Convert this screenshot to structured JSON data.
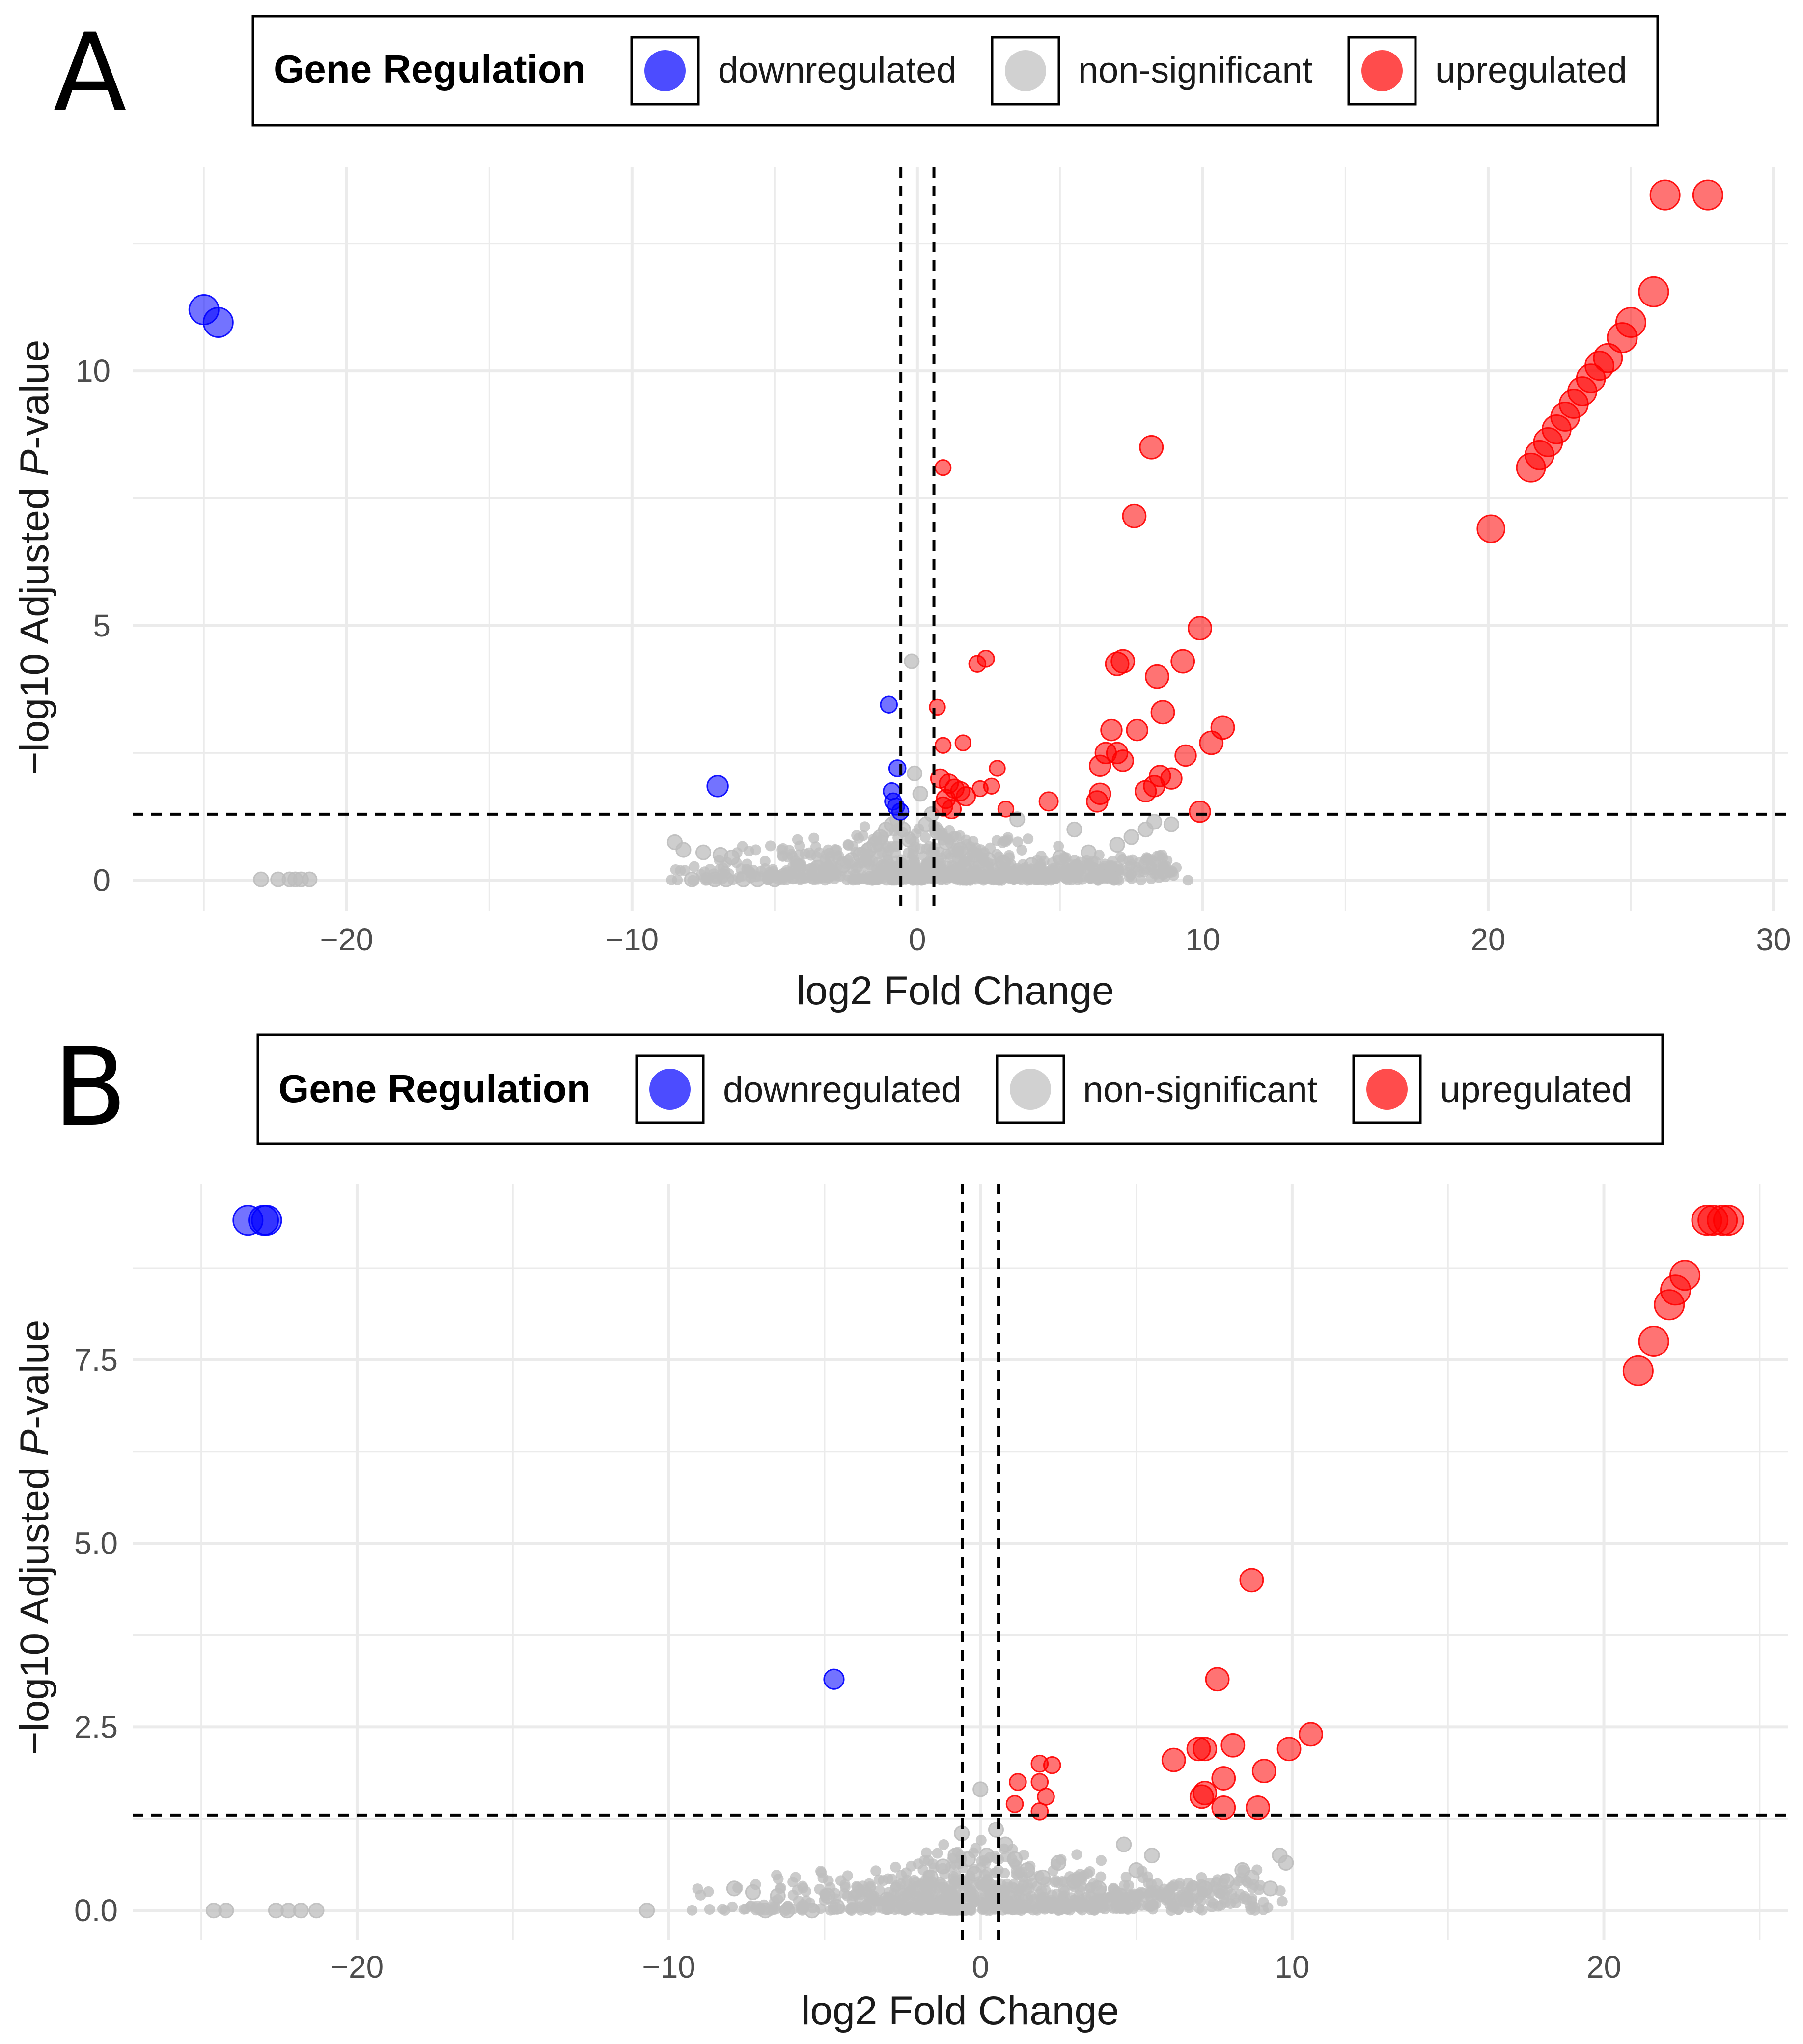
{
  "legend": {
    "title": "Gene Regulation",
    "entries": [
      {
        "label": "downregulated",
        "color": "#0000ff"
      },
      {
        "label": "non-significant",
        "color": "#bebebe"
      },
      {
        "label": "upregulated",
        "color": "#ff0000"
      }
    ]
  },
  "colors": {
    "down": "#0000ff",
    "ns": "#bebebe",
    "up": "#ff0000",
    "grid": "#ebebeb",
    "threshold": "#000000"
  },
  "chart_data": [
    {
      "panel": "A",
      "type": "scatter",
      "title": "",
      "xlabel": "log2 Fold Change",
      "ylabel_prefix": "−log10 Adjusted ",
      "ylabel_italic": "P",
      "ylabel_suffix": "-value",
      "xlim": [
        -27.5,
        30.5
      ],
      "ylim": [
        -0.6,
        14.0
      ],
      "x_ticks": [
        -20,
        -10,
        0,
        10,
        20,
        30
      ],
      "x_tick_labels": [
        "−20",
        "−10",
        "0",
        "10",
        "20",
        "30"
      ],
      "y_ticks": [
        0,
        5,
        10
      ],
      "y_tick_labels": [
        "0",
        "5",
        "10"
      ],
      "fc_threshold": 0.58,
      "p_threshold": 1.3,
      "legend_position": "top",
      "points": {
        "downregulated": [
          [
            -25.0,
            11.2,
            1.0
          ],
          [
            -24.5,
            10.95,
            1.0
          ],
          [
            -7.0,
            1.85,
            0.6
          ],
          [
            -1.0,
            3.45,
            0.4
          ],
          [
            -0.7,
            2.2,
            0.4
          ],
          [
            -0.9,
            1.75,
            0.4
          ],
          [
            -0.85,
            1.55,
            0.4
          ],
          [
            -0.75,
            1.45,
            0.4
          ],
          [
            -0.6,
            1.35,
            0.4
          ]
        ],
        "upregulated": [
          [
            27.7,
            13.45,
            1.0
          ],
          [
            26.2,
            13.45,
            1.0
          ],
          [
            25.8,
            11.55,
            1.0
          ],
          [
            25.0,
            10.95,
            1.0
          ],
          [
            24.7,
            10.65,
            1.0
          ],
          [
            24.2,
            10.25,
            0.95
          ],
          [
            23.9,
            10.1,
            0.95
          ],
          [
            23.6,
            9.85,
            0.95
          ],
          [
            23.3,
            9.6,
            0.95
          ],
          [
            23.0,
            9.35,
            0.95
          ],
          [
            22.7,
            9.1,
            0.95
          ],
          [
            22.4,
            8.85,
            0.95
          ],
          [
            22.1,
            8.6,
            0.95
          ],
          [
            21.8,
            8.35,
            0.95
          ],
          [
            21.5,
            8.1,
            0.95
          ],
          [
            20.1,
            6.9,
            0.9
          ],
          [
            8.2,
            8.5,
            0.7
          ],
          [
            7.6,
            7.15,
            0.7
          ],
          [
            9.9,
            4.95,
            0.7
          ],
          [
            7.2,
            4.3,
            0.7
          ],
          [
            7.0,
            4.25,
            0.7
          ],
          [
            9.3,
            4.3,
            0.7
          ],
          [
            8.4,
            4.0,
            0.7
          ],
          [
            8.6,
            3.3,
            0.7
          ],
          [
            10.7,
            3.0,
            0.7
          ],
          [
            10.3,
            2.7,
            0.7
          ],
          [
            6.8,
            2.95,
            0.6
          ],
          [
            7.7,
            2.95,
            0.6
          ],
          [
            6.6,
            2.5,
            0.6
          ],
          [
            7.0,
            2.5,
            0.6
          ],
          [
            9.4,
            2.45,
            0.6
          ],
          [
            6.4,
            2.25,
            0.6
          ],
          [
            7.2,
            2.35,
            0.6
          ],
          [
            8.5,
            2.05,
            0.6
          ],
          [
            8.9,
            2.0,
            0.6
          ],
          [
            8.0,
            1.75,
            0.6
          ],
          [
            8.3,
            1.85,
            0.6
          ],
          [
            6.4,
            1.7,
            0.6
          ],
          [
            6.3,
            1.55,
            0.6
          ],
          [
            9.9,
            1.35,
            0.6
          ],
          [
            4.6,
            1.55,
            0.5
          ],
          [
            2.4,
            4.35,
            0.4
          ],
          [
            2.1,
            4.25,
            0.4
          ],
          [
            0.9,
            8.1,
            0.35
          ],
          [
            0.7,
            3.4,
            0.35
          ],
          [
            1.6,
            2.7,
            0.35
          ],
          [
            0.9,
            2.65,
            0.35
          ],
          [
            2.8,
            2.2,
            0.35
          ],
          [
            3.1,
            1.4,
            0.35
          ],
          [
            2.6,
            1.85,
            0.35
          ],
          [
            2.2,
            1.8,
            0.35
          ],
          [
            0.8,
            2.0,
            0.5
          ],
          [
            1.1,
            1.9,
            0.5
          ],
          [
            1.3,
            1.8,
            0.5
          ],
          [
            1.5,
            1.75,
            0.5
          ],
          [
            1.0,
            1.6,
            0.5
          ],
          [
            1.7,
            1.65,
            0.5
          ],
          [
            0.9,
            1.45,
            0.5
          ],
          [
            1.2,
            1.4,
            0.5
          ]
        ],
        "nonsignificant": [
          [
            -23.0,
            0.02,
            0.3
          ],
          [
            -22.4,
            0.02,
            0.3
          ],
          [
            -22.0,
            0.02,
            0.3
          ],
          [
            -21.8,
            0.02,
            0.3
          ],
          [
            -21.6,
            0.02,
            0.3
          ],
          [
            -21.3,
            0.02,
            0.3
          ],
          [
            -8.5,
            0.75,
            0.3
          ],
          [
            -8.2,
            0.6,
            0.3
          ],
          [
            -7.5,
            0.55,
            0.3
          ],
          [
            -6.9,
            0.5,
            0.3
          ],
          [
            -6.5,
            0.45,
            0.3
          ],
          [
            -7.9,
            0.02,
            0.3
          ],
          [
            -7.1,
            0.02,
            0.3
          ],
          [
            -6.7,
            0.02,
            0.3
          ],
          [
            -6.1,
            0.02,
            0.3
          ],
          [
            -5.6,
            0.02,
            0.3
          ],
          [
            -5.0,
            0.02,
            0.3
          ],
          [
            -4.2,
            0.2,
            0.3
          ],
          [
            -3.5,
            0.25,
            0.3
          ],
          [
            -3.0,
            0.15,
            0.3
          ],
          [
            -2.6,
            0.3,
            0.3
          ],
          [
            -2.3,
            0.4,
            0.3
          ],
          [
            -2.0,
            0.5,
            0.3
          ],
          [
            -1.7,
            0.6,
            0.3
          ],
          [
            -1.5,
            0.7,
            0.3
          ],
          [
            -1.3,
            0.85,
            0.3
          ],
          [
            -1.1,
            1.0,
            0.3
          ],
          [
            -0.9,
            1.1,
            0.3
          ],
          [
            -0.7,
            1.2,
            0.3
          ],
          [
            -0.5,
            1.0,
            0.3
          ],
          [
            -0.3,
            0.8,
            0.3
          ],
          [
            -0.2,
            4.3,
            0.3
          ],
          [
            -0.1,
            2.1,
            0.3
          ],
          [
            0.1,
            1.7,
            0.3
          ],
          [
            0.3,
            1.1,
            0.3
          ],
          [
            0.5,
            1.3,
            0.3
          ],
          [
            0.7,
            0.95,
            0.3
          ],
          [
            1.0,
            0.75,
            0.3
          ],
          [
            1.5,
            0.6,
            0.3
          ],
          [
            2.0,
            0.5,
            0.3
          ],
          [
            2.5,
            0.4,
            0.3
          ],
          [
            3.0,
            0.35,
            0.3
          ],
          [
            3.5,
            1.2,
            0.3
          ],
          [
            4.0,
            0.3,
            0.3
          ],
          [
            5.0,
            0.45,
            0.3
          ],
          [
            6.0,
            0.55,
            0.3
          ],
          [
            7.0,
            0.7,
            0.3
          ],
          [
            7.5,
            0.85,
            0.3
          ],
          [
            8.0,
            1.0,
            0.3
          ],
          [
            8.3,
            1.15,
            0.3
          ],
          [
            8.9,
            1.1,
            0.3
          ],
          [
            5.5,
            1.0,
            0.3
          ]
        ]
      }
    },
    {
      "panel": "B",
      "type": "scatter",
      "title": "",
      "xlabel": "log2 Fold Change",
      "ylabel_prefix": "−log10 Adjusted ",
      "ylabel_italic": "P",
      "ylabel_suffix": "-value",
      "xlim": [
        -27.2,
        25.9
      ],
      "ylim": [
        -0.4,
        9.9
      ],
      "x_ticks": [
        -20,
        -10,
        0,
        10,
        20
      ],
      "x_tick_labels": [
        "−20",
        "−10",
        "0",
        "10",
        "20"
      ],
      "y_ticks": [
        0,
        2.5,
        5,
        7.5
      ],
      "y_tick_labels": [
        "0.0",
        "2.5",
        "5.0",
        "7.5"
      ],
      "fc_threshold": 0.58,
      "p_threshold": 1.3,
      "legend_position": "top",
      "points": {
        "downregulated": [
          [
            -23.5,
            9.4,
            1.0
          ],
          [
            -22.9,
            9.4,
            1.0
          ],
          [
            -23.0,
            9.4,
            1.0
          ],
          [
            -4.7,
            3.15,
            0.55
          ]
        ],
        "upregulated": [
          [
            23.5,
            9.4,
            1.0
          ],
          [
            23.8,
            9.4,
            1.0
          ],
          [
            24.0,
            9.4,
            1.0
          ],
          [
            23.3,
            9.4,
            1.0
          ],
          [
            22.6,
            8.65,
            1.0
          ],
          [
            22.3,
            8.45,
            1.0
          ],
          [
            22.1,
            8.25,
            1.0
          ],
          [
            21.6,
            7.75,
            1.0
          ],
          [
            21.1,
            7.35,
            1.0
          ],
          [
            8.7,
            4.5,
            0.7
          ],
          [
            7.6,
            3.15,
            0.7
          ],
          [
            10.6,
            2.4,
            0.7
          ],
          [
            9.9,
            2.2,
            0.7
          ],
          [
            8.1,
            2.25,
            0.7
          ],
          [
            7.0,
            2.2,
            0.7
          ],
          [
            7.2,
            2.2,
            0.7
          ],
          [
            6.2,
            2.05,
            0.7
          ],
          [
            9.1,
            1.9,
            0.7
          ],
          [
            7.8,
            1.8,
            0.7
          ],
          [
            7.1,
            1.55,
            0.7
          ],
          [
            7.2,
            1.6,
            0.7
          ],
          [
            7.8,
            1.4,
            0.7
          ],
          [
            8.9,
            1.4,
            0.7
          ],
          [
            1.9,
            2.0,
            0.4
          ],
          [
            2.3,
            1.98,
            0.4
          ],
          [
            1.9,
            1.75,
            0.4
          ],
          [
            1.2,
            1.75,
            0.4
          ],
          [
            2.1,
            1.55,
            0.4
          ],
          [
            1.1,
            1.45,
            0.4
          ],
          [
            1.9,
            1.35,
            0.4
          ]
        ],
        "nonsignificant": [
          [
            -24.6,
            0.0,
            0.3
          ],
          [
            -24.2,
            0.0,
            0.3
          ],
          [
            -22.6,
            0.0,
            0.3
          ],
          [
            -22.2,
            0.0,
            0.3
          ],
          [
            -21.8,
            0.0,
            0.3
          ],
          [
            -21.3,
            0.0,
            0.3
          ],
          [
            -10.7,
            0.0,
            0.3
          ],
          [
            -7.9,
            0.3,
            0.3
          ],
          [
            -7.3,
            0.25,
            0.3
          ],
          [
            -6.5,
            0.2,
            0.3
          ],
          [
            -6.9,
            0.0,
            0.3
          ],
          [
            -6.2,
            0.0,
            0.3
          ],
          [
            -5.4,
            0.0,
            0.3
          ],
          [
            -4.6,
            0.05,
            0.3
          ],
          [
            -4.9,
            0.2,
            0.3
          ],
          [
            -3.8,
            0.15,
            0.3
          ],
          [
            -3.0,
            0.15,
            0.3
          ],
          [
            -2.5,
            0.2,
            0.3
          ],
          [
            -2.0,
            0.3,
            0.3
          ],
          [
            -1.6,
            0.45,
            0.3
          ],
          [
            -1.2,
            0.6,
            0.3
          ],
          [
            -0.8,
            0.75,
            0.3
          ],
          [
            -0.6,
            1.05,
            0.3
          ],
          [
            -0.4,
            0.7,
            0.3
          ],
          [
            -0.2,
            0.5,
            0.3
          ],
          [
            0.0,
            1.65,
            0.3
          ],
          [
            0.2,
            0.75,
            0.3
          ],
          [
            0.5,
            1.1,
            0.3
          ],
          [
            0.8,
            0.9,
            0.3
          ],
          [
            1.1,
            0.7,
            0.3
          ],
          [
            1.5,
            0.55,
            0.3
          ],
          [
            2.0,
            0.45,
            0.3
          ],
          [
            2.5,
            0.65,
            0.3
          ],
          [
            3.0,
            0.4,
            0.3
          ],
          [
            3.8,
            0.3,
            0.3
          ],
          [
            4.5,
            0.2,
            0.3
          ],
          [
            5.0,
            0.55,
            0.3
          ],
          [
            5.5,
            0.75,
            0.3
          ],
          [
            6.0,
            0.2,
            0.3
          ],
          [
            6.6,
            0.15,
            0.3
          ],
          [
            7.2,
            0.3,
            0.3
          ],
          [
            7.9,
            0.4,
            0.3
          ],
          [
            8.4,
            0.55,
            0.3
          ],
          [
            9.3,
            0.3,
            0.3
          ],
          [
            9.6,
            0.75,
            0.3
          ],
          [
            9.8,
            0.65,
            0.3
          ],
          [
            4.6,
            0.9,
            0.3
          ],
          [
            8.7,
            0.45,
            0.3
          ]
        ]
      }
    }
  ]
}
